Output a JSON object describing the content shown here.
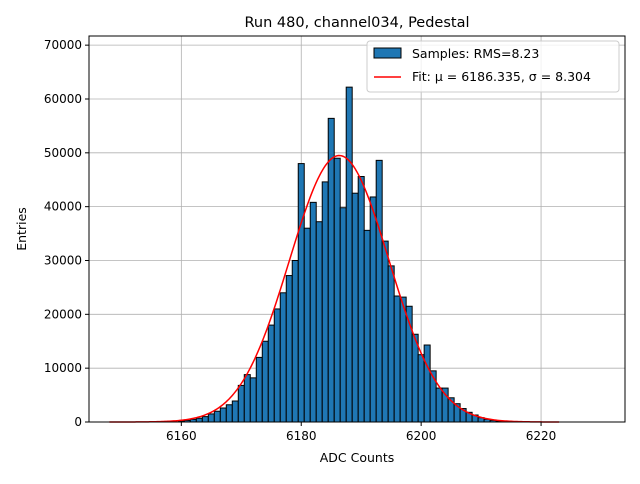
{
  "chart_data": {
    "type": "bar",
    "title": "Run 480, channel034, Pedestal",
    "xlabel": "ADC Counts",
    "ylabel": "Entries",
    "xlim": [
      6144.6,
      6234
    ],
    "ylim": [
      0,
      71700
    ],
    "xticks": [
      6160,
      6180,
      6200,
      6220
    ],
    "yticks": [
      0,
      10000,
      20000,
      30000,
      40000,
      50000,
      60000,
      70000
    ],
    "grid": true,
    "legend_position": "top-right",
    "bar_color": "#1f77b4",
    "fit_color": "#ff0000",
    "legend": {
      "samples": "Samples: RMS=8.23",
      "fit": "Fit: μ = 6186.335, σ = 8.304"
    },
    "bins": [
      6160,
      6161,
      6162,
      6163,
      6164,
      6165,
      6166,
      6167,
      6168,
      6169,
      6170,
      6171,
      6172,
      6173,
      6174,
      6175,
      6176,
      6177,
      6178,
      6179,
      6180,
      6181,
      6182,
      6183,
      6184,
      6185,
      6186,
      6187,
      6188,
      6189,
      6190,
      6191,
      6192,
      6193,
      6194,
      6195,
      6196,
      6197,
      6198,
      6199,
      6200,
      6201,
      6202,
      6203,
      6204,
      6205,
      6206,
      6207,
      6208,
      6209,
      6210,
      6211,
      6212,
      6213
    ],
    "values": [
      200,
      300,
      500,
      700,
      1000,
      1500,
      2000,
      2600,
      3200,
      3900,
      6800,
      8800,
      8200,
      12000,
      15000,
      18000,
      21000,
      24000,
      27200,
      30000,
      48000,
      36000,
      40800,
      37200,
      44600,
      56400,
      49000,
      39800,
      62200,
      42500,
      45600,
      35600,
      41800,
      48600,
      33600,
      29000,
      23400,
      23200,
      21500,
      16300,
      12500,
      14300,
      9500,
      6300,
      6300,
      4500,
      3400,
      2500,
      1800,
      1300,
      800,
      500,
      300,
      150
    ],
    "fit": {
      "mu": 6186.335,
      "sigma": 8.304,
      "amplitude": 49500,
      "range": [
        6148,
        6223
      ]
    }
  }
}
